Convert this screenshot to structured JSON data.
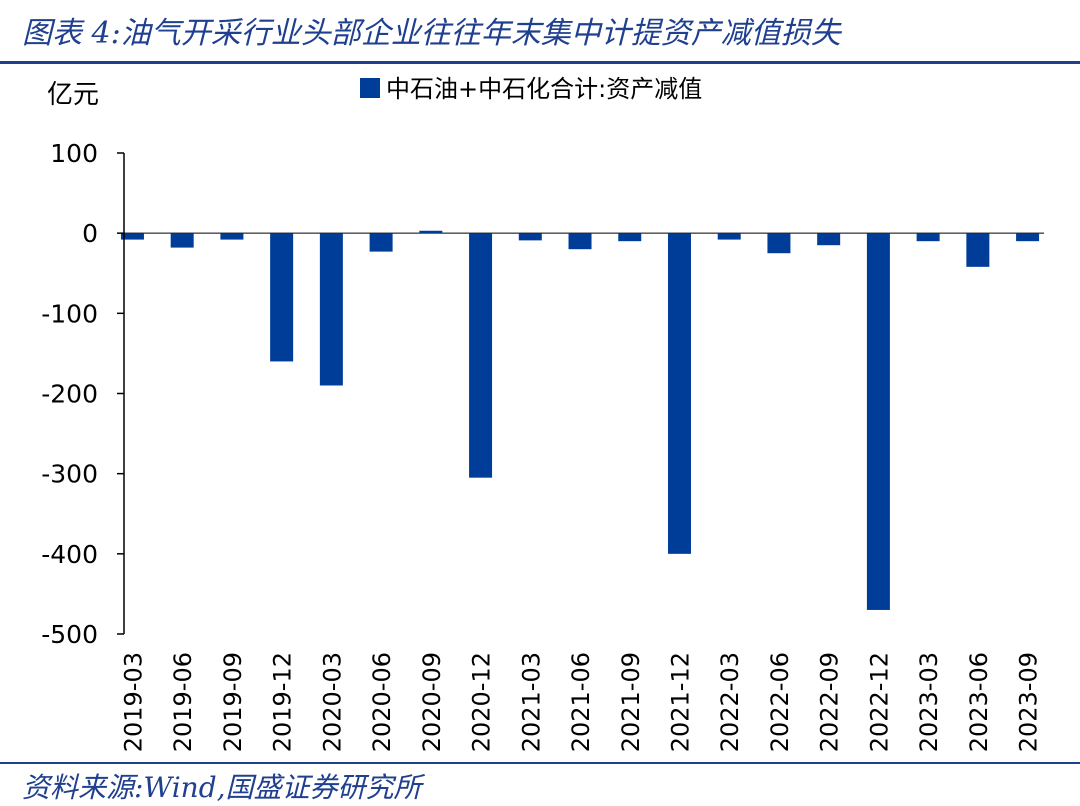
{
  "header": {
    "title": "图表 4:油气开采行业头部企业往往年末集中计提资产减值损失"
  },
  "footer": {
    "source": "资料来源:Wind,国盛证券研究所"
  },
  "chart_data": {
    "type": "bar",
    "unit": "亿元",
    "legend_position": "top",
    "grid": false,
    "categories": [
      "2019-03",
      "2019-06",
      "2019-09",
      "2019-12",
      "2020-03",
      "2020-06",
      "2020-09",
      "2020-12",
      "2021-03",
      "2021-06",
      "2021-09",
      "2021-12",
      "2022-03",
      "2022-06",
      "2022-09",
      "2022-12",
      "2023-03",
      "2023-06",
      "2023-09"
    ],
    "series": [
      {
        "name": "中石油+中石化合计:资产减值",
        "color": "#003d99",
        "values": [
          -8,
          -18,
          -8,
          -160,
          -190,
          -23,
          3,
          -305,
          -9,
          -20,
          -10,
          -400,
          -8,
          -25,
          -15,
          -470,
          -10,
          -42,
          -10
        ]
      }
    ],
    "ylim": [
      -500,
      100
    ],
    "yticks": [
      100,
      0,
      -100,
      -200,
      -300,
      -400,
      -500
    ]
  }
}
